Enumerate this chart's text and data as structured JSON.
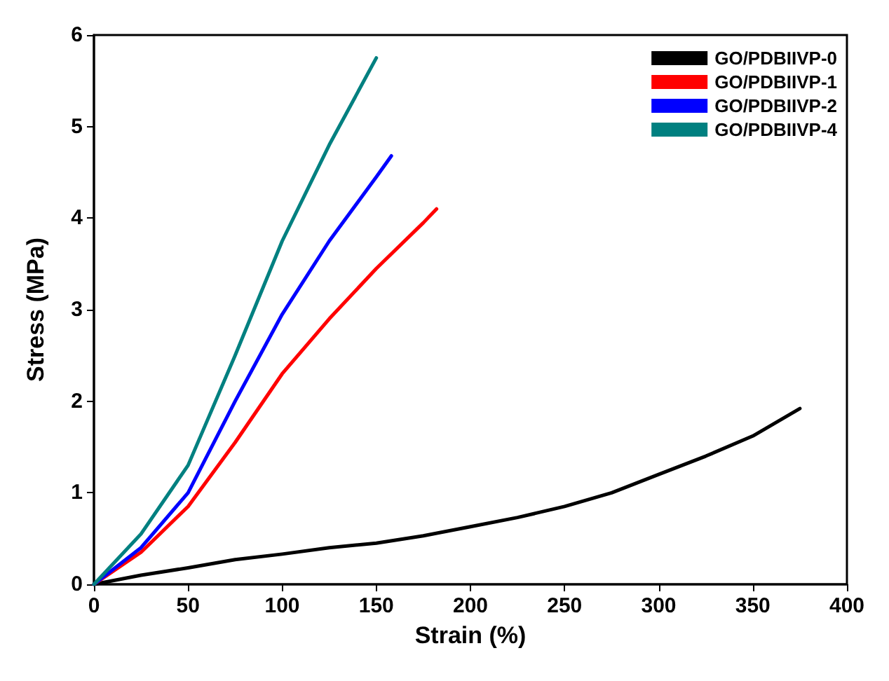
{
  "chart_data": {
    "type": "line",
    "xlabel": "Strain (%)",
    "ylabel": "Stress (MPa)",
    "xlim": [
      0,
      400
    ],
    "xticks": [
      0,
      50,
      100,
      150,
      200,
      250,
      300,
      350,
      400
    ],
    "ylim": [
      0,
      6
    ],
    "yticks": [
      0,
      1,
      2,
      3,
      4,
      5,
      6
    ],
    "grid": false,
    "legend": "top right",
    "marker": "none",
    "line_style": "solid",
    "series": [
      {
        "name": "GO/PDBIIVP-0",
        "color": "#000000",
        "x": [
          0,
          25,
          50,
          75,
          100,
          125,
          150,
          175,
          200,
          225,
          250,
          275,
          300,
          325,
          350,
          375
        ],
        "values": [
          0,
          0.1,
          0.18,
          0.27,
          0.33,
          0.4,
          0.45,
          0.53,
          0.63,
          0.73,
          0.85,
          1.0,
          1.2,
          1.4,
          1.62,
          1.92
        ]
      },
      {
        "name": "GO/PDBIIVP-1",
        "color": "#ff0000",
        "x": [
          0,
          25,
          50,
          75,
          100,
          125,
          150,
          175,
          182
        ],
        "values": [
          0,
          0.35,
          0.85,
          1.55,
          2.3,
          2.9,
          3.45,
          3.95,
          4.1
        ]
      },
      {
        "name": "GO/PDBIIVP-2",
        "color": "#0000ff",
        "x": [
          0,
          25,
          50,
          75,
          100,
          125,
          150,
          158
        ],
        "values": [
          0,
          0.4,
          1.0,
          2.0,
          2.95,
          3.75,
          4.45,
          4.68
        ]
      },
      {
        "name": "GO/PDBIIVP-4",
        "color": "#008080",
        "x": [
          0,
          25,
          50,
          75,
          100,
          125,
          150
        ],
        "values": [
          0,
          0.55,
          1.3,
          2.5,
          3.75,
          4.8,
          5.75
        ]
      }
    ]
  }
}
